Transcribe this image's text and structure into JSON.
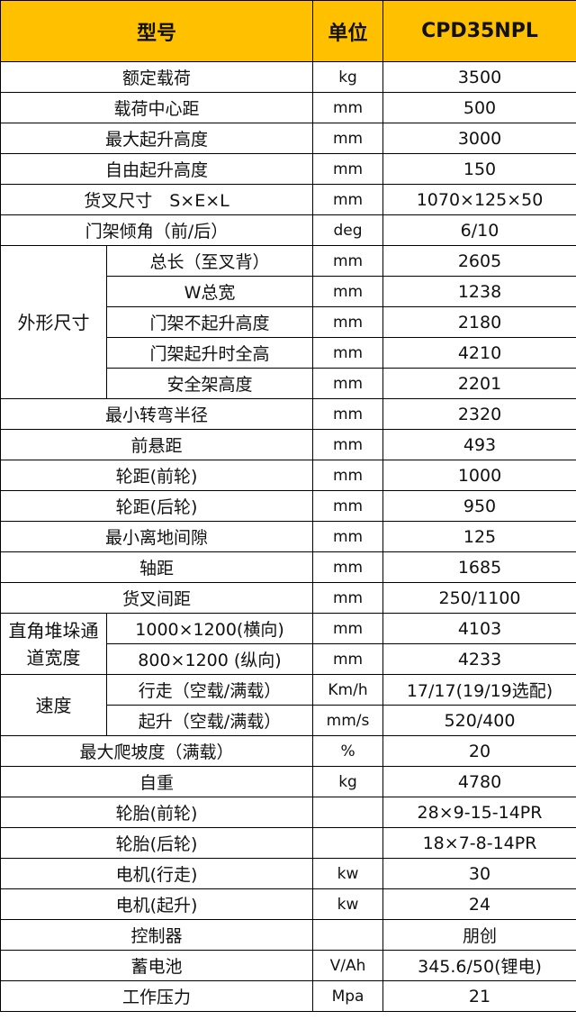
{
  "header": {
    "col_item": "型号",
    "col_unit": "单位",
    "col_value": "CPD35NPL",
    "header_color": "#FFC000"
  },
  "rows": [
    {
      "label": "额定载荷",
      "unit": "kg",
      "value": "3500"
    },
    {
      "label": "载荷中心距",
      "unit": "mm",
      "value": "500"
    },
    {
      "label": "最大起升高度",
      "unit": "mm",
      "value": "3000"
    },
    {
      "label": "自由起升高度",
      "unit": "mm",
      "value": "150"
    },
    {
      "label": "货叉尺寸　S×E×L",
      "unit": "mm",
      "value": "1070×125×50"
    },
    {
      "label": "门架倾角（前/后）",
      "unit": "deg",
      "value": "6/10"
    },
    {
      "group": "外形尺寸",
      "rows": [
        {
          "label": "总长（至叉背）",
          "unit": "mm",
          "value": "2605"
        },
        {
          "label": "W总宽",
          "unit": "mm",
          "value": "1238"
        },
        {
          "label": "门架不起升高度",
          "unit": "mm",
          "value": "2180"
        },
        {
          "label": "门架起升时全高",
          "unit": "mm",
          "value": "4210"
        },
        {
          "label": "安全架高度",
          "unit": "mm",
          "value": "2201"
        }
      ]
    },
    {
      "label": "最小转弯半径",
      "unit": "mm",
      "value": "2320"
    },
    {
      "label": "前悬距",
      "unit": "mm",
      "value": "493"
    },
    {
      "label": "轮距(前轮)",
      "unit": "mm",
      "value": "1000"
    },
    {
      "label": "轮距(后轮)",
      "unit": "mm",
      "value": "950"
    },
    {
      "label": "最小离地间隙",
      "unit": "mm",
      "value": "125"
    },
    {
      "label": "轴距",
      "unit": "mm",
      "value": "1685"
    },
    {
      "label": "货叉间距",
      "unit": "mm",
      "value": "250/1100"
    },
    {
      "group": "直角堆垛通道宽度",
      "rows": [
        {
          "label": "1000×1200(横向)",
          "unit": "mm",
          "value": "4103"
        },
        {
          "label": "800×1200 (纵向)",
          "unit": "mm",
          "value": "4233"
        }
      ]
    },
    {
      "group": "速度",
      "rows": [
        {
          "label": "行走（空载/满载）",
          "unit": "Km/h",
          "value": "17/17(19/19选配)"
        },
        {
          "label": "起升（空载/满载）",
          "unit": "mm/s",
          "value": "520/400"
        }
      ]
    },
    {
      "label": "最大爬坡度（满载）",
      "unit": "%",
      "value": "20"
    },
    {
      "label": "自重",
      "unit": "kg",
      "value": "4780"
    },
    {
      "label": "轮胎(前轮)",
      "unit": "",
      "value": "28×9-15-14PR"
    },
    {
      "label": "轮胎(后轮)",
      "unit": "",
      "value": "18×7-8-14PR"
    },
    {
      "label": "电机(行走)",
      "unit": "kw",
      "value": "30"
    },
    {
      "label": "电机(起升)",
      "unit": "kw",
      "value": "24"
    },
    {
      "label": "控制器",
      "unit": "",
      "value": "朋创"
    },
    {
      "label": "蓄电池",
      "unit": "V/Ah",
      "value": "345.6/50(锂电)"
    },
    {
      "label": "工作压力",
      "unit": "Mpa",
      "value": "21"
    }
  ]
}
